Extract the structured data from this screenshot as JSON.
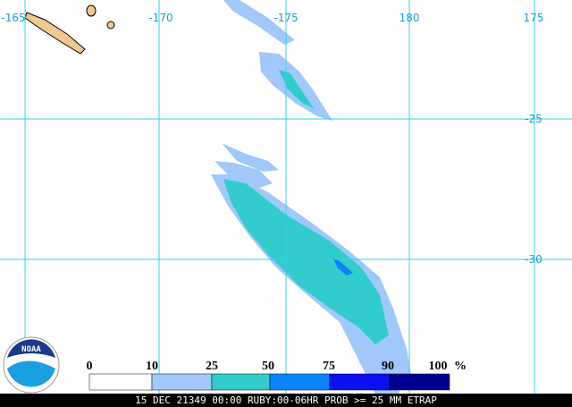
{
  "map": {
    "longitude_labels": [
      "-165",
      "-170",
      "-175",
      "180",
      "175"
    ],
    "latitude_labels": [
      "-25",
      "-30"
    ],
    "legend": {
      "ticks": [
        0,
        10,
        25,
        50,
        75,
        90,
        100
      ],
      "unit": "%",
      "colors": [
        "#ffffff",
        "#a0c8fa",
        "#33cccc",
        "#0a84f8",
        "#0a10f0",
        "#000090"
      ]
    },
    "logo": "NOAA",
    "footer": "15 DEC 21349 00:00 RUBY:00-06HR PROB >= 25 MM ETRAP"
  }
}
